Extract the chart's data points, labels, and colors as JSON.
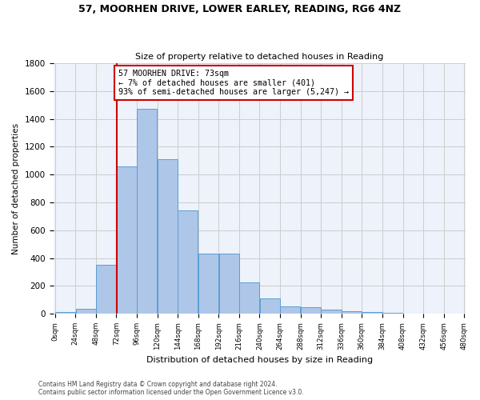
{
  "title1": "57, MOORHEN DRIVE, LOWER EARLEY, READING, RG6 4NZ",
  "title2": "Size of property relative to detached houses in Reading",
  "xlabel": "Distribution of detached houses by size in Reading",
  "ylabel": "Number of detached properties",
  "bin_edges": [
    0,
    24,
    48,
    72,
    96,
    120,
    144,
    168,
    192,
    216,
    240,
    264,
    288,
    312,
    336,
    360,
    384,
    408,
    432,
    456,
    480
  ],
  "bar_heights": [
    10,
    35,
    350,
    1060,
    1470,
    1110,
    745,
    430,
    430,
    225,
    110,
    55,
    45,
    30,
    20,
    10,
    5,
    2,
    1,
    0
  ],
  "bar_color": "#aec6e8",
  "bar_edge_color": "#5a9fd4",
  "property_size": 73,
  "annotation_text": "57 MOORHEN DRIVE: 73sqm\n← 7% of detached houses are smaller (401)\n93% of semi-detached houses are larger (5,247) →",
  "annotation_box_color": "#ffffff",
  "annotation_edge_color": "#cc0000",
  "vline_color": "#cc0000",
  "ylim": [
    0,
    1800
  ],
  "yticks": [
    0,
    200,
    400,
    600,
    800,
    1000,
    1200,
    1400,
    1600,
    1800
  ],
  "footer_line1": "Contains HM Land Registry data © Crown copyright and database right 2024.",
  "footer_line2": "Contains public sector information licensed under the Open Government Licence v3.0.",
  "bg_color": "#ffffff",
  "plot_bg_color": "#eef2fa",
  "grid_color": "#cccccc"
}
